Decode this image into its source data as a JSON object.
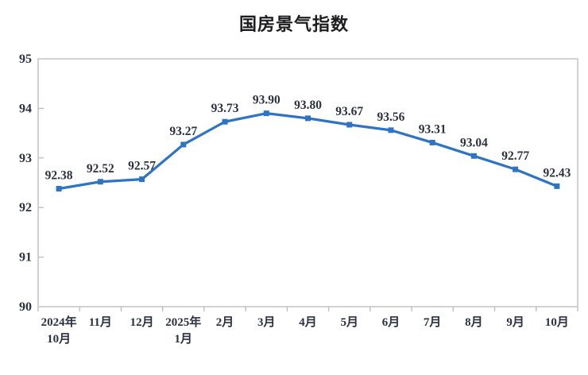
{
  "chart_data": {
    "type": "line",
    "title": "国房景气指数",
    "categories": [
      "2024年\n10月",
      "11月",
      "12月",
      "2025年\n1月",
      "2月",
      "3月",
      "4月",
      "5月",
      "6月",
      "7月",
      "8月",
      "9月",
      "10月"
    ],
    "values": [
      92.38,
      92.52,
      92.57,
      93.27,
      93.73,
      93.9,
      93.8,
      93.67,
      93.56,
      93.31,
      93.04,
      92.77,
      92.43
    ],
    "data_labels": [
      "92.38",
      "92.52",
      "92.57",
      "93.27",
      "93.73",
      "93.90",
      "93.80",
      "93.67",
      "93.56",
      "93.31",
      "93.04",
      "92.77",
      "92.43"
    ],
    "ylim": [
      90,
      95
    ],
    "yticks": [
      90,
      91,
      92,
      93,
      94,
      95
    ],
    "xlabel": "",
    "ylabel": "",
    "grid": "off",
    "legend": "none",
    "line_color": "#2e74c4",
    "marker": "square",
    "text_color": "#2b3140",
    "axis_color": "#bfbfbf",
    "background": "#ffffff"
  }
}
